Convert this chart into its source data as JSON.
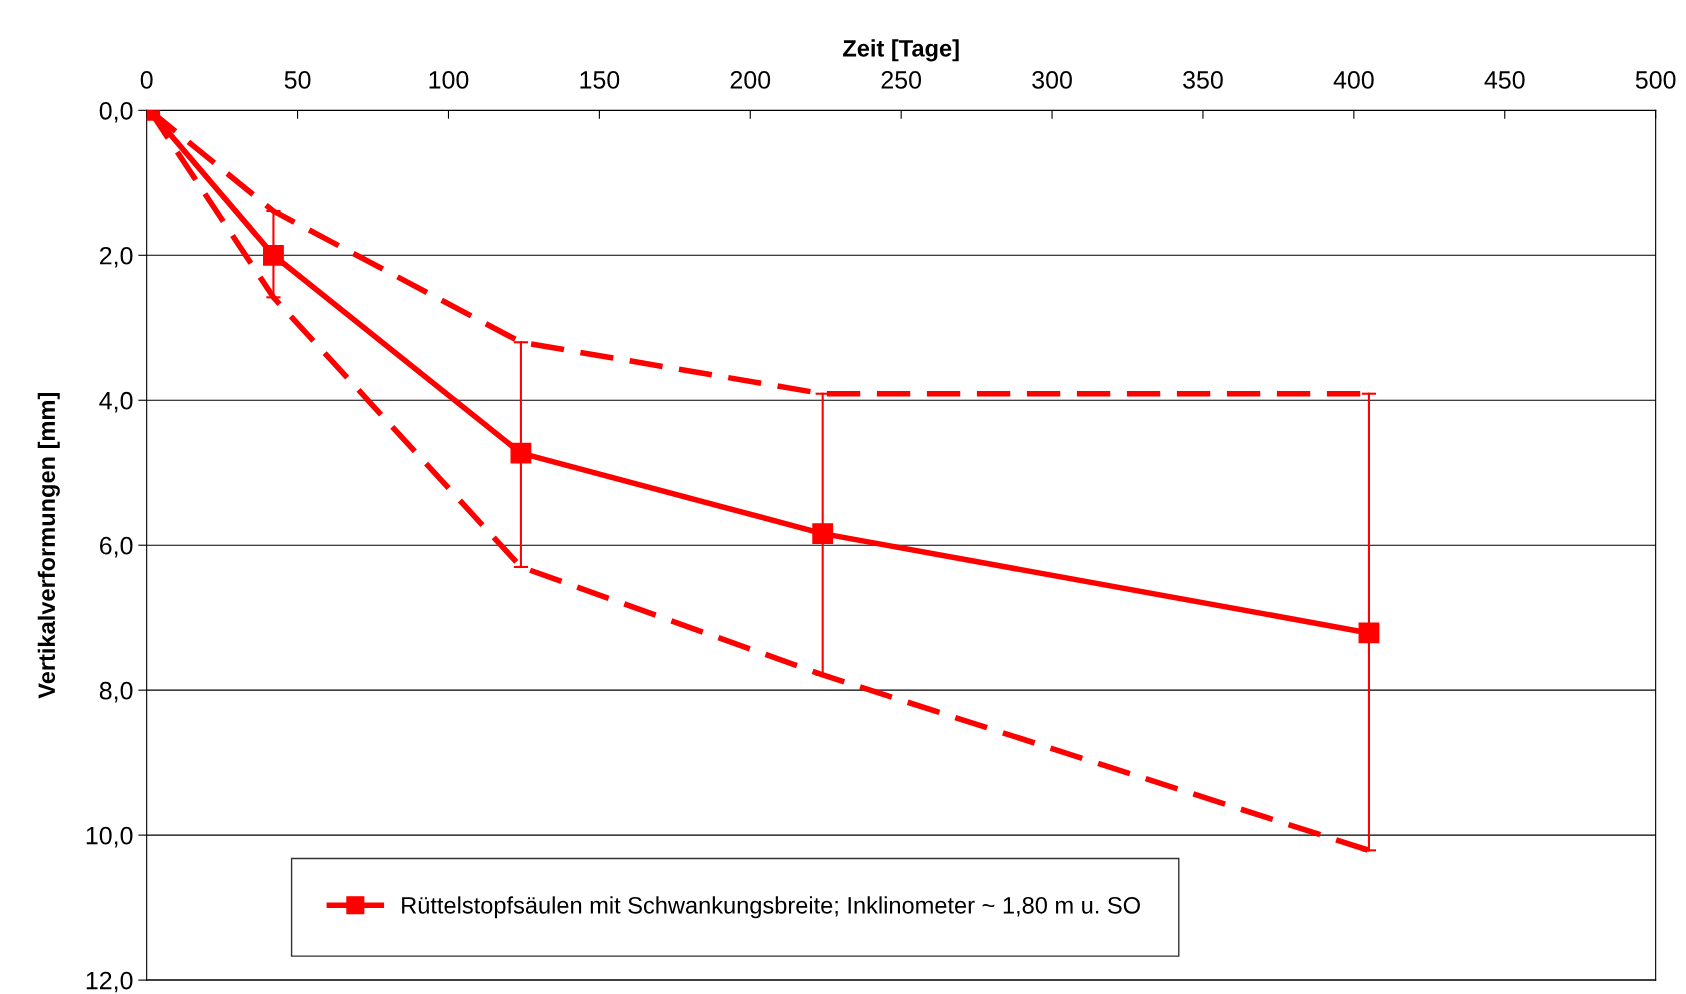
{
  "chart_data": {
    "type": "line",
    "xlabel": "Zeit [Tage]",
    "ylabel": "Vertikalverformungen [mm]",
    "x": [
      1,
      42,
      124,
      224,
      405
    ],
    "series": [
      {
        "name": "Rüttelstopfsäulen mit Schwankungsbreite; Inklinometer ~ 1,80 m u. SO",
        "color": "#ff0000",
        "values": [
          0,
          2.0,
          4.73,
          5.84,
          7.21
        ],
        "errors": [
          null,
          [
            2.58,
            1.39
          ],
          [
            6.3,
            3.2
          ],
          [
            7.79,
            3.91
          ],
          [
            10.21,
            3.91
          ]
        ],
        "marker": "square",
        "line_style": "solid"
      },
      {
        "color": "#ff0000",
        "values": [
          0,
          1.39,
          3.2,
          3.91,
          3.91
        ],
        "marker": "none",
        "line_style": "dashed"
      },
      {
        "color": "#ff0000",
        "values": [
          0,
          2.58,
          6.3,
          7.79,
          10.21
        ],
        "marker": "none",
        "line_style": "dashed"
      }
    ],
    "xlim": [
      0,
      500
    ],
    "xticks": [
      0,
      50,
      100,
      150,
      200,
      250,
      300,
      350,
      400,
      450,
      500
    ],
    "ylim": [
      12,
      0
    ],
    "yticks": [
      {
        "value": 0,
        "label": "0,0"
      },
      {
        "value": 2,
        "label": "2,0"
      },
      {
        "value": 4,
        "label": "4,0"
      },
      {
        "value": 6,
        "label": "6,0"
      },
      {
        "value": 8,
        "label": "8,0"
      },
      {
        "value": 10,
        "label": "10,0"
      },
      {
        "value": 12,
        "label": "12,0"
      }
    ],
    "grid": "y",
    "legend": "bottom"
  }
}
